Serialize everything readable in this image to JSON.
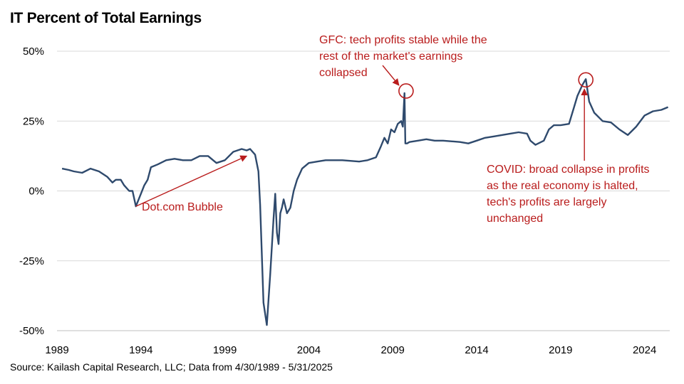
{
  "chart_data": {
    "type": "line",
    "title": "IT Percent of Total Earnings",
    "xlabel": "",
    "ylabel": "",
    "xlim": [
      1989.0,
      2025.5
    ],
    "ylim": [
      -50,
      50
    ],
    "x_ticks": [
      1989,
      1994,
      1999,
      2004,
      2009,
      2014,
      2019,
      2024
    ],
    "x_tick_labels": [
      "1989",
      "1994",
      "1999",
      "2004",
      "2009",
      "2014",
      "2019",
      "2024"
    ],
    "y_ticks": [
      50,
      25,
      0,
      -25,
      -50
    ],
    "y_tick_labels": [
      "50%",
      "25%",
      "0%",
      "-25%",
      "-50%"
    ],
    "grid": "horizontal",
    "series": [
      {
        "color": "#2f4a6d",
        "x": [
          1989.3,
          1989.7,
          1990.0,
          1990.5,
          1991.0,
          1991.5,
          1992.0,
          1992.3,
          1992.5,
          1992.8,
          1993.0,
          1993.3,
          1993.5,
          1993.7,
          1993.8,
          1994.0,
          1994.2,
          1994.4,
          1994.6,
          1995.0,
          1995.5,
          1996.0,
          1996.5,
          1997.0,
          1997.5,
          1998.0,
          1998.3,
          1998.5,
          1999.0,
          1999.5,
          2000.0,
          2000.3,
          2000.5,
          2000.8,
          2001.0,
          2001.1,
          2001.3,
          2001.5,
          2001.7,
          2001.9,
          2002.0,
          2002.1,
          2002.2,
          2002.3,
          2002.4,
          2002.5,
          2002.7,
          2002.9,
          2003.1,
          2003.3,
          2003.6,
          2004.0,
          2004.5,
          2005.0,
          2006.0,
          2007.0,
          2007.5,
          2008.0,
          2008.3,
          2008.5,
          2008.7,
          2008.9,
          2009.1,
          2009.3,
          2009.5,
          2009.6,
          2009.7,
          2009.75,
          2009.85,
          2010.0,
          2010.5,
          2011.0,
          2011.5,
          2012.0,
          2013.0,
          2013.5,
          2014.0,
          2014.5,
          2015.0,
          2015.5,
          2016.0,
          2016.5,
          2017.0,
          2017.2,
          2017.5,
          2018.0,
          2018.3,
          2018.6,
          2019.0,
          2019.5,
          2019.8,
          2020.0,
          2020.3,
          2020.5,
          2020.7,
          2021.0,
          2021.5,
          2022.0,
          2022.5,
          2023.0,
          2023.5,
          2024.0,
          2024.5,
          2025.0,
          2025.4
        ],
        "values": [
          8,
          7.5,
          7,
          6.5,
          8,
          7,
          5,
          3,
          4,
          4,
          2,
          0,
          0,
          -5.5,
          -4,
          -1,
          2,
          4,
          8.5,
          9.5,
          11,
          11.5,
          11,
          11,
          12.5,
          12.5,
          11,
          10,
          11,
          14,
          15,
          14.5,
          15,
          13,
          7,
          -5,
          -40,
          -48,
          -30,
          -10,
          -1,
          -15,
          -19,
          -8,
          -6,
          -3,
          -8,
          -6,
          0,
          4,
          8,
          10,
          10.5,
          11,
          11,
          10.5,
          11,
          12,
          16,
          19,
          17,
          22,
          21,
          24,
          25,
          23,
          35,
          17,
          17,
          17.5,
          18,
          18.5,
          18,
          18,
          17.5,
          17,
          18,
          19,
          19.5,
          20,
          20.5,
          21,
          20.5,
          18,
          16.5,
          18,
          22,
          23.5,
          23.5,
          24,
          30,
          34,
          38,
          40,
          32,
          28,
          25,
          24.5,
          22,
          20,
          23,
          27,
          28.5,
          29,
          30
        ]
      }
    ],
    "annotations": [
      {
        "lines": [
          "GFC: tech profits stable while the",
          "rest of the market's earnings",
          "collapsed"
        ],
        "x": 2009.75,
        "y": 35
      },
      {
        "lines": [
          "Dot.com Bubble"
        ],
        "x": 1993.5,
        "y": -5
      },
      {
        "lines": [
          "COVID: broad collapse in profits",
          "as the real economy is halted,",
          "tech's profits are largely",
          "unchanged"
        ],
        "x": 2020.5,
        "y": 40
      }
    ]
  },
  "source": "Source: Kailash Capital Research, LLC; Data from 4/30/1989 - 5/31/2025"
}
